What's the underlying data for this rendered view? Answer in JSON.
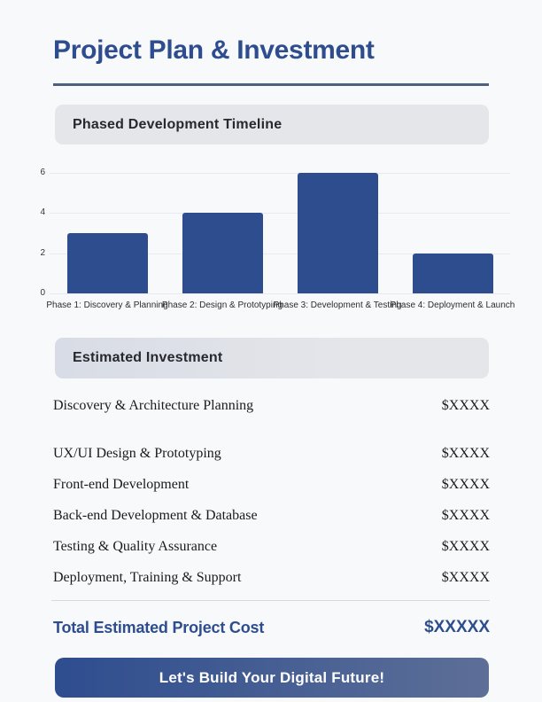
{
  "page": {
    "title": "Project Plan & Investment"
  },
  "timeline_section": {
    "header": "Phased Development Timeline"
  },
  "chart_data": {
    "type": "bar",
    "categories": [
      "Phase 1: Discovery & Planning",
      "Phase 2: Design & Prototyping",
      "Phase 3: Development & Testing",
      "Phase 4: Deployment & Launch"
    ],
    "values": [
      3,
      4,
      6,
      2
    ],
    "title": "Phased Development Timeline",
    "xlabel": "",
    "ylabel": "",
    "yticks": [
      0,
      2,
      4,
      6
    ],
    "ylim": [
      0,
      6
    ],
    "grid": true,
    "legend": "none",
    "bar_color": "#2e4d8f"
  },
  "investment_section": {
    "header": "Estimated Investment",
    "rows": [
      {
        "label": "Discovery & Architecture Planning",
        "value": "$XXXX"
      },
      {
        "label": "UX/UI Design & Prototyping",
        "value": "$XXXX"
      },
      {
        "label": "Front-end Development",
        "value": "$XXXX"
      },
      {
        "label": "Back-end Development & Database",
        "value": "$XXXX"
      },
      {
        "label": "Testing & Quality Assurance",
        "value": "$XXXX"
      },
      {
        "label": "Deployment, Training & Support",
        "value": "$XXXX"
      }
    ],
    "total_label": "Total Estimated Project Cost",
    "total_value": "$XXXXX"
  },
  "cta": {
    "label": "Let's Build Your Digital Future!"
  },
  "colors": {
    "accent": "#2e4d8f",
    "rule": "#4e6080",
    "banner_bg": "#e5e6ea",
    "banner_bg_blue": "#d8dce6",
    "page_bg": "#f8f9fa",
    "bar": "#2e4d8f"
  }
}
